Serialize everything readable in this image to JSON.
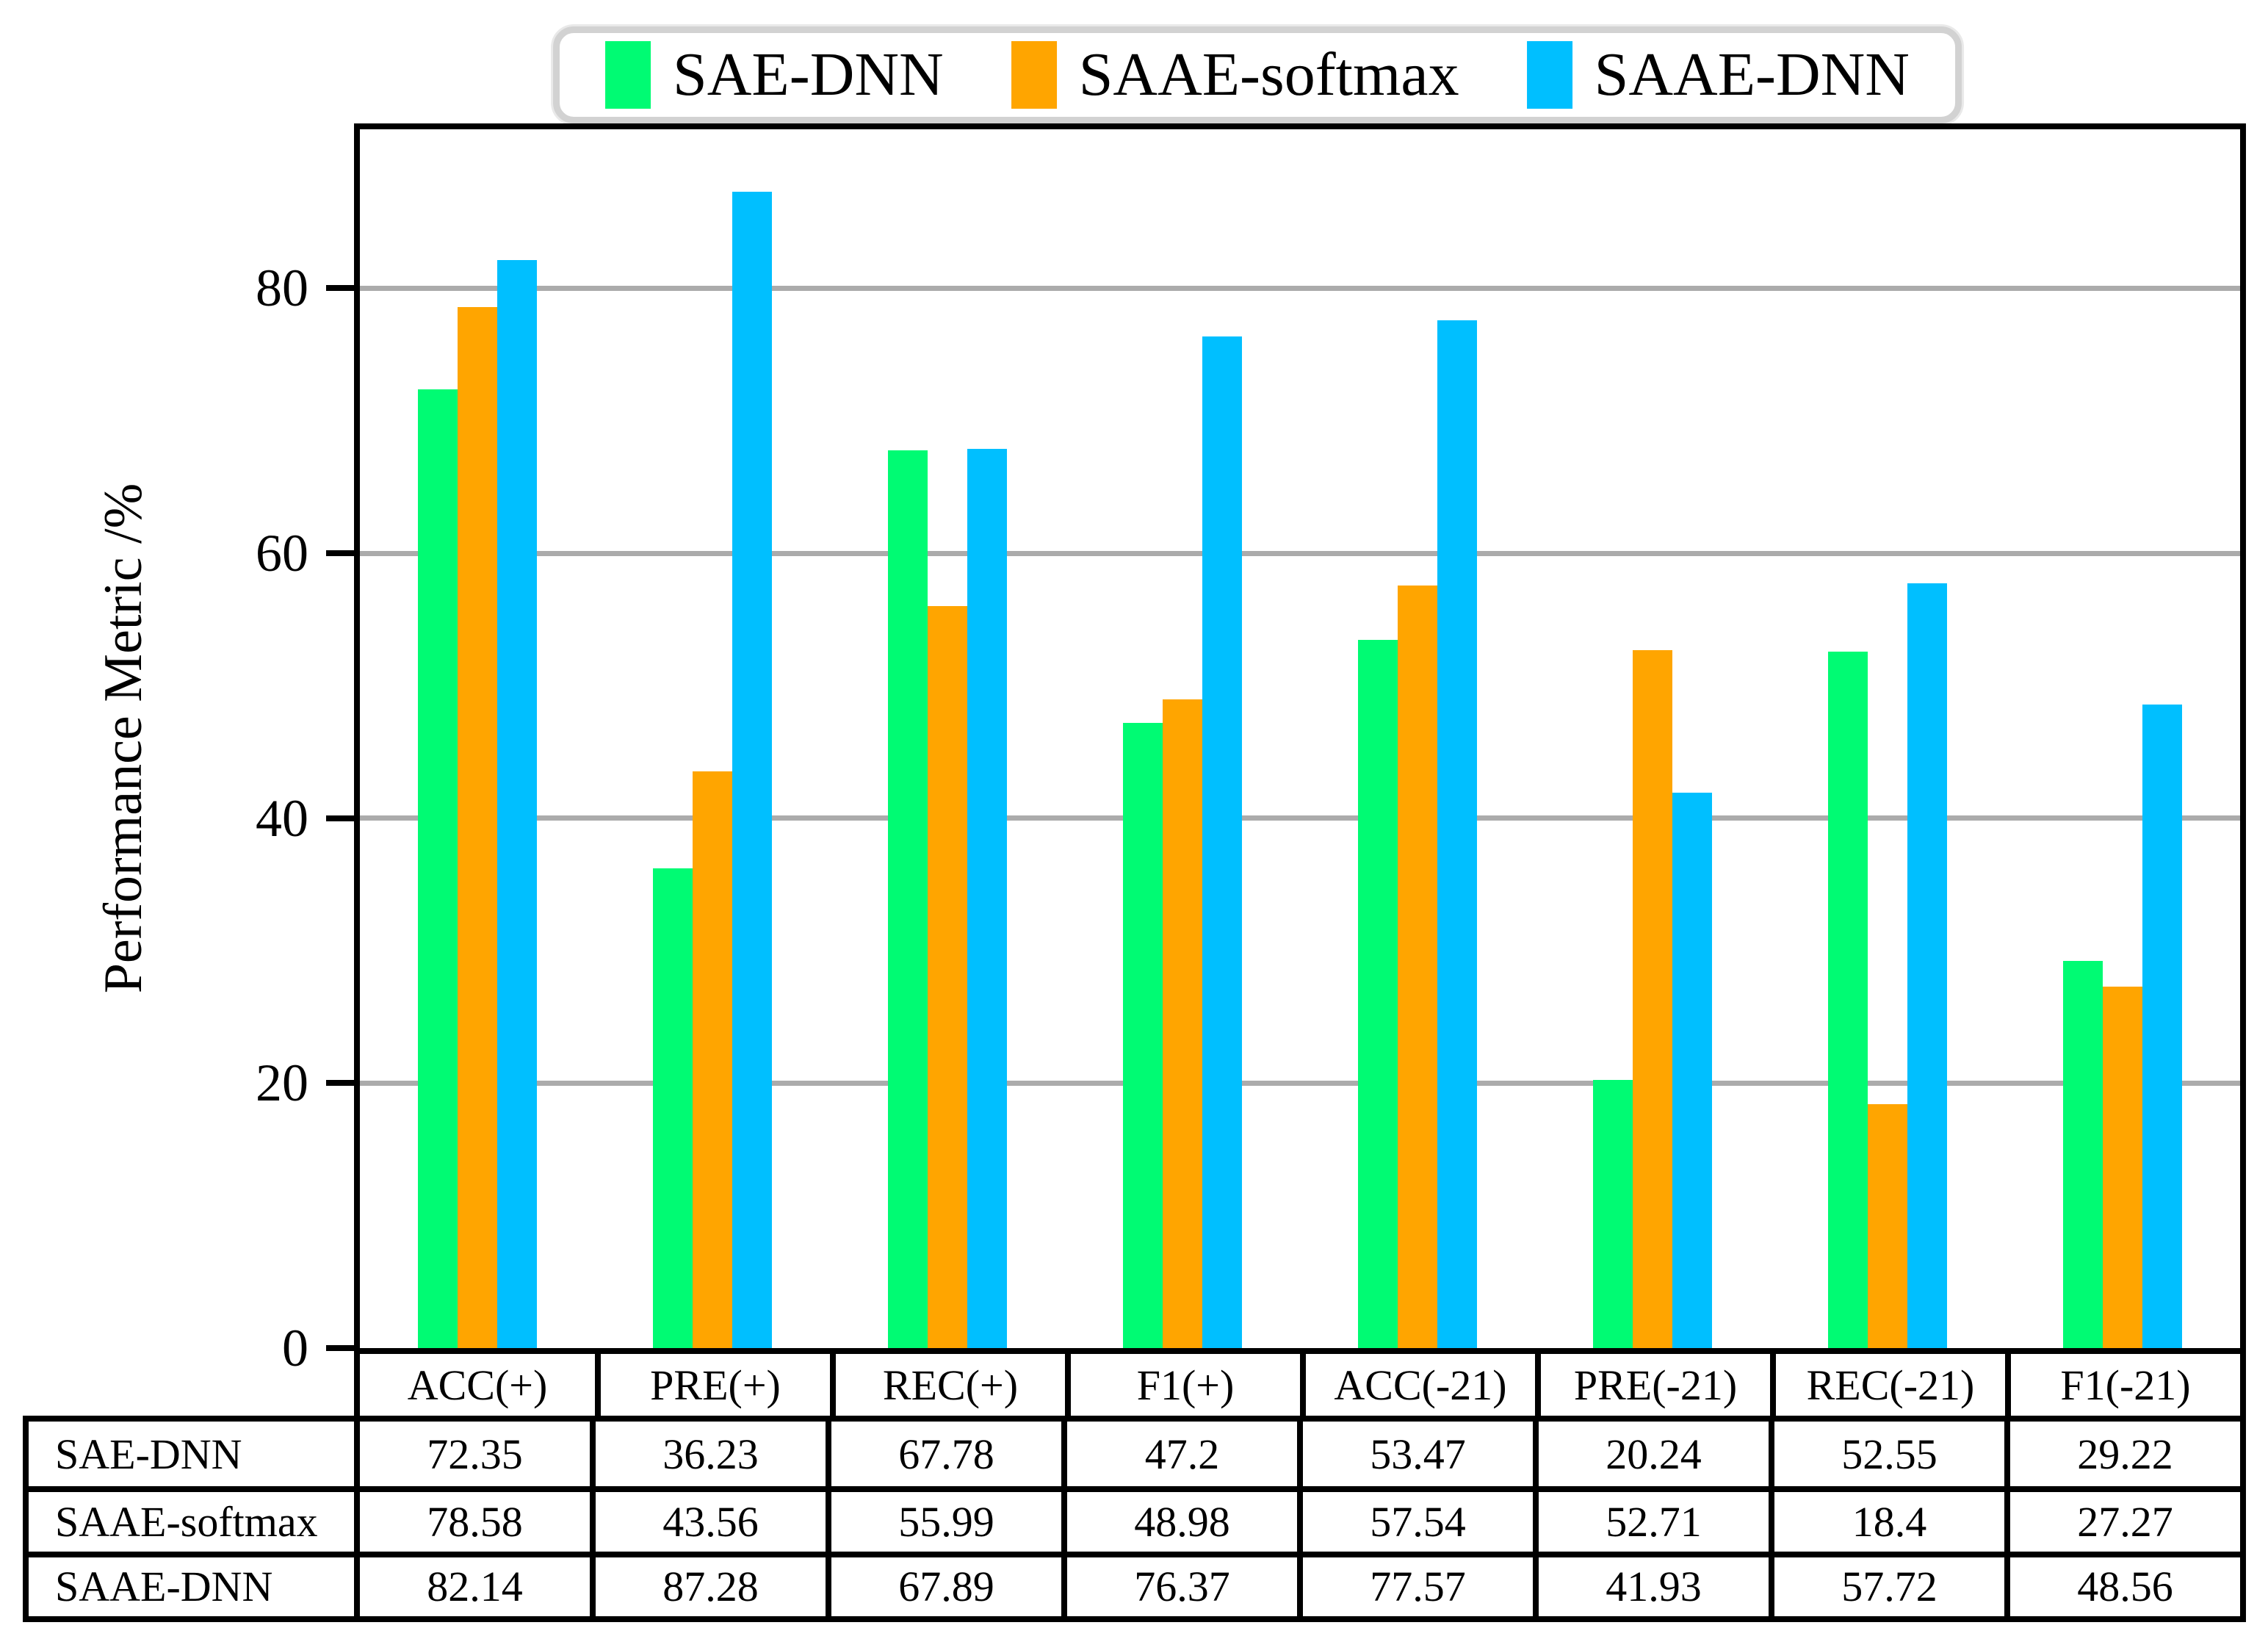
{
  "chart_data": {
    "type": "bar",
    "title": "",
    "xlabel": "",
    "ylabel": "Performance Metric /%",
    "ylim": [
      0,
      90
    ],
    "yticks": [
      0,
      20,
      40,
      60,
      80
    ],
    "grid": true,
    "grid_color": "#ababab",
    "axis_color": "#000000",
    "legend_position": "top-center",
    "legend_border_color": "#d2d2d2",
    "categories": [
      "ACC(+)",
      "PRE(+)",
      "REC(+)",
      "F1(+)",
      "ACC(-21)",
      "PRE(-21)",
      "REC(-21)",
      "F1(-21)"
    ],
    "series": [
      {
        "name": "SAE-DNN",
        "color": "#00fb73",
        "values": [
          72.35,
          36.23,
          67.78,
          47.2,
          53.47,
          20.24,
          52.55,
          29.22
        ]
      },
      {
        "name": "SAAE-softmax",
        "color": "#ffa500",
        "values": [
          78.58,
          43.56,
          55.99,
          48.98,
          57.54,
          52.71,
          18.4,
          27.27
        ]
      },
      {
        "name": "SAAE-DNN",
        "color": "#00bfff",
        "values": [
          82.14,
          87.28,
          67.89,
          76.37,
          77.57,
          41.93,
          57.72,
          48.56
        ]
      }
    ]
  },
  "table": {
    "header": [
      "ACC(+)",
      "PRE(+)",
      "REC(+)",
      "F1(+)",
      "ACC(-21)",
      "PRE(-21)",
      "REC(-21)",
      "F1(-21)"
    ],
    "rows": [
      {
        "label": "SAE-DNN",
        "values": [
          "72.35",
          "36.23",
          "67.78",
          "47.2",
          "53.47",
          "20.24",
          "52.55",
          "29.22"
        ]
      },
      {
        "label": "SAAE-softmax",
        "values": [
          "78.58",
          "43.56",
          "55.99",
          "48.98",
          "57.54",
          "52.71",
          "18.4",
          "27.27"
        ]
      },
      {
        "label": "SAAE-DNN",
        "values": [
          "82.14",
          "87.28",
          "67.89",
          "76.37",
          "77.57",
          "41.93",
          "57.72",
          "48.56"
        ]
      }
    ]
  }
}
